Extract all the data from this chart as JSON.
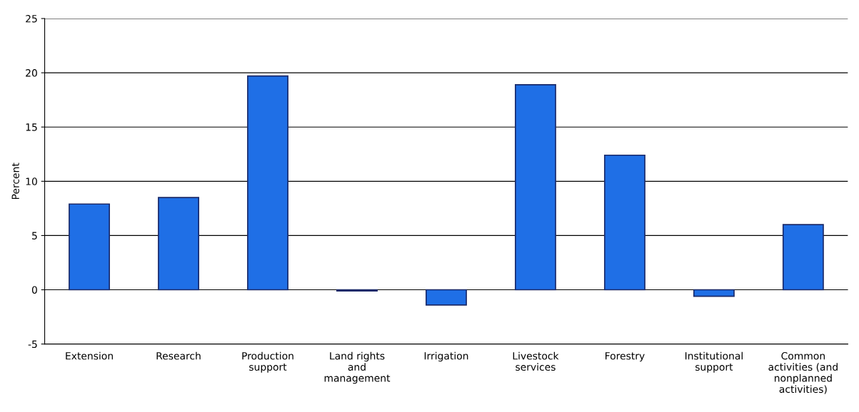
{
  "chart_data": {
    "type": "bar",
    "ylabel": "Percent",
    "categories": [
      "Extension",
      "Research",
      "Production\nsupport",
      "Land rights\nand\nmanagement",
      "Irrigation",
      "Livestock\nservices",
      "Forestry",
      "Institutional\nsupport",
      "Common\nactivities (and\nnonplanned\nactivities)"
    ],
    "values": [
      7.9,
      8.5,
      19.7,
      -0.1,
      -1.4,
      18.9,
      12.4,
      -0.6,
      6.0
    ],
    "color": "#1f6fe6",
    "ylim": [
      -5,
      25
    ],
    "yticks": [
      -5,
      0,
      5,
      10,
      15,
      20,
      25
    ],
    "grid": "y",
    "legend": false
  }
}
